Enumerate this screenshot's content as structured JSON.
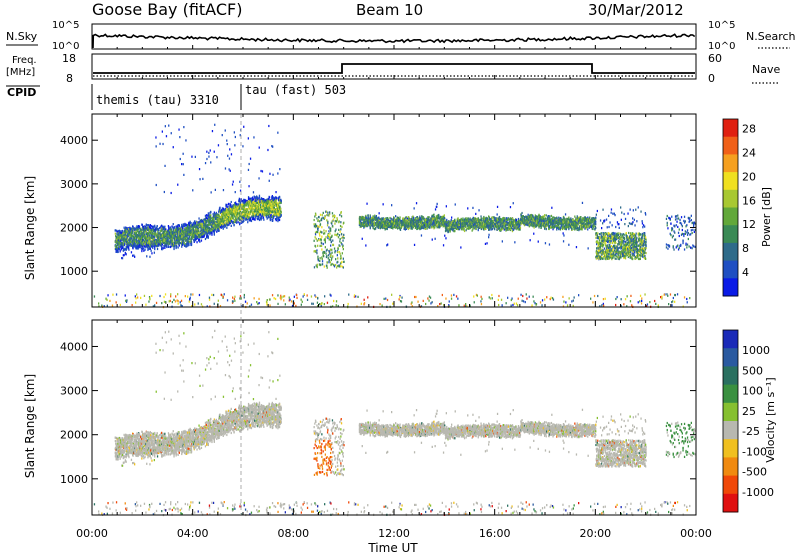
{
  "header": {
    "station": "Goose Bay (fitACF)",
    "beam": "Beam 10",
    "date": "30/Mar/2012"
  },
  "top_panels": {
    "nsky": {
      "label": "N.Sky",
      "y_ticks": [
        "10^5",
        "10^0"
      ],
      "right_label": "N.Search",
      "right_ticks": [
        "10^5",
        "10^0"
      ]
    },
    "freq": {
      "label_line1": "Freq.",
      "label_line2": "[MHz]",
      "y_ticks": [
        "18",
        "8"
      ],
      "right_label": "Nave",
      "right_ticks": [
        "60",
        "0"
      ]
    },
    "cpid": {
      "label": "CPID",
      "segments": [
        {
          "label": "themis (tau) 3310",
          "start_hour": 0,
          "end_hour": 5.95
        },
        {
          "label": "tau (fast) 503",
          "start_hour": 5.95,
          "end_hour": 24
        }
      ]
    }
  },
  "chart_data": [
    {
      "type": "heatmap",
      "name": "power-panel",
      "ylabel": "Slant Range [km]",
      "y_ticks": [
        "1000",
        "2000",
        "3000",
        "4000"
      ],
      "ylim": [
        180,
        4600
      ],
      "xlim_hours": [
        0,
        24
      ],
      "colorbar": {
        "label": "Power [dB]",
        "ticks": [
          "4",
          "8",
          "12",
          "16",
          "20",
          "24",
          "28"
        ],
        "colors": [
          "#0a1be6",
          "#1f4fc2",
          "#2e6b8a",
          "#3a8a55",
          "#62a83a",
          "#a8c832",
          "#f0e020",
          "#f5a020",
          "#f06018",
          "#e02010"
        ]
      },
      "echo_bands": [
        {
          "hours": [
            0.9,
            7.5
          ],
          "range_km": [
            1500,
            2700
          ],
          "note": "rising band"
        },
        {
          "hours": [
            8.8,
            10.0
          ],
          "range_km": [
            1100,
            2400
          ]
        },
        {
          "hours": [
            10.6,
            20.0
          ],
          "range_km": [
            1900,
            2350
          ]
        },
        {
          "hours": [
            20.0,
            22.0
          ],
          "range_km": [
            1300,
            1800
          ]
        }
      ]
    },
    {
      "type": "heatmap",
      "name": "velocity-panel",
      "ylabel": "Slant Range [km]",
      "y_ticks": [
        "1000",
        "2000",
        "3000",
        "4000"
      ],
      "ylim": [
        180,
        4600
      ],
      "xlim_hours": [
        0,
        24
      ],
      "colorbar": {
        "label": "Velocity  [m s⁻¹]",
        "ticks": [
          "1000",
          "500",
          "100",
          "25",
          "-25",
          "-100",
          "-500",
          "-1000"
        ],
        "colors": [
          "#1a2ab8",
          "#2a5aa0",
          "#2a7060",
          "#3a9040",
          "#86c030",
          "#b8b8b0",
          "#f0c020",
          "#f08a10",
          "#f04808",
          "#e01010"
        ]
      }
    }
  ],
  "x_axis": {
    "ticks": [
      "00:00",
      "04:00",
      "08:00",
      "12:00",
      "16:00",
      "20:00",
      "00:00"
    ],
    "label": "Time UT"
  }
}
